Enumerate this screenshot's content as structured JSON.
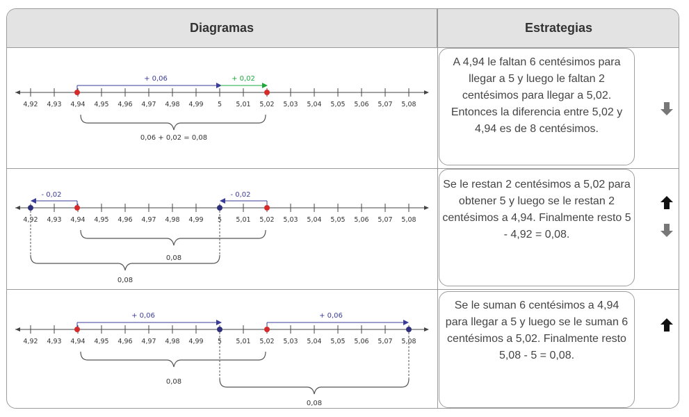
{
  "headers": {
    "diagrams": "Diagramas",
    "strategies": "Estrategias"
  },
  "ticks": [
    "4,92",
    "4,93",
    "4,94",
    "4,95",
    "4,96",
    "4,97",
    "4,98",
    "4,99",
    "5",
    "5,01",
    "5,02",
    "5,03",
    "5,04",
    "5,05",
    "5,06",
    "5,07",
    "5,08"
  ],
  "rows": [
    {
      "strategy": "A 4,94 le faltan 6 centésimos para llegar a 5 y luego le faltan 2 centésimos para llegar a 5,02. Entonces la diferencia entre 5,02 y 4,94 es de 8 centésimos.",
      "jump1_label": "+ 0,06",
      "jump2_label": "+ 0,02",
      "brace_label": "0,06 + 0,02 = 0,08",
      "arrows": [
        "down"
      ]
    },
    {
      "strategy": "Se le restan 2 centésimos a 5,02 para obtener 5 y luego se le restan 2 centésimos a 4,94. Finalmente resto 5 - 4,92 = 0,08.",
      "jump1_label": "- 0,02",
      "jump2_label": "- 0,02",
      "brace1_label": "0,08",
      "brace2_label": "0,08",
      "arrows": [
        "up",
        "down"
      ]
    },
    {
      "strategy": "Se le suman 6 centésimos a 4,94 para llegar a 5 y luego se le suman 6 centésimos a 5,02. Finalmente resto 5,08 - 5 = 0,08.",
      "jump1_label": "+ 0,06",
      "jump2_label": "+ 0,06",
      "brace1_label": "0,08",
      "brace2_label": "0,08",
      "arrows": [
        "up"
      ]
    }
  ],
  "colors": {
    "red_point": "#d62b2b",
    "blue_point": "#2e2e7a",
    "blue_arrow": "#3b3b9a",
    "green_arrow": "#1ea83c",
    "border": "#9a9a9a",
    "header_bg": "#e3e3e3"
  }
}
